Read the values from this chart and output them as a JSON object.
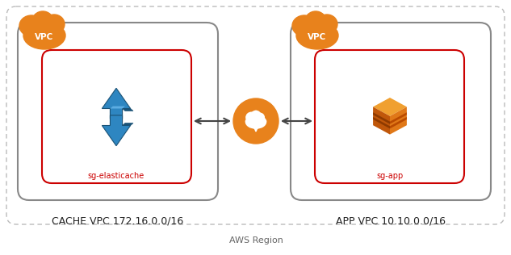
{
  "bg_color": "#ffffff",
  "outer_border_color": "#aaaaaa",
  "vpc_border_color": "#666666",
  "sg_border_color": "#cc0000",
  "sg_label_color": "#cc0000",
  "orange": "#E8821C",
  "blue_dark": "#1A5276",
  "blue_mid": "#2471A3",
  "blue_light": "#5DADE2",
  "arrow_color": "#444444",
  "label_color": "#222222",
  "region_label_color": "#666666",
  "label_cache_vpc": "CACHE VPC 172.16.0.0/16",
  "label_app_vpc": "APP VPC 10.10.0.0/16",
  "label_aws_region": "AWS Region",
  "label_sg_left": "sg-elasticache",
  "label_sg_right": "sg-app",
  "label_vpc": "VPC"
}
